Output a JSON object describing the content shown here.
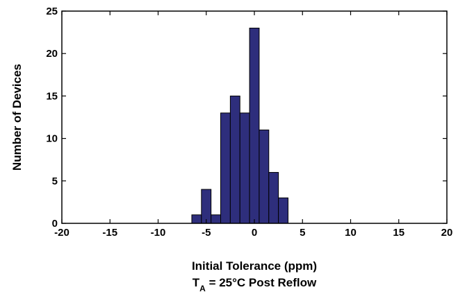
{
  "chart_data": {
    "type": "bar",
    "subtype": "histogram",
    "bin_width": 1,
    "bin_centers": [
      -6,
      -5,
      -4,
      -3,
      -2,
      -1,
      0,
      1,
      2,
      3
    ],
    "values": [
      1,
      4,
      1,
      13,
      15,
      13,
      23,
      11,
      6,
      3
    ],
    "xlim": [
      -20,
      20
    ],
    "ylim": [
      0,
      25
    ],
    "xticks": [
      "-20",
      "-15",
      "-10",
      "-5",
      "0",
      "5",
      "10",
      "15",
      "20"
    ],
    "yticks": [
      "0",
      "5",
      "10",
      "15",
      "20",
      "25"
    ],
    "xlabel": "Initial Tolerance (ppm)",
    "xlabel2": {
      "prefix": "T",
      "subscript": "A",
      "suffix": " = 25°C Post Reflow"
    },
    "ylabel": "Number of Devices",
    "bar_color": "#2e2e7c",
    "grid": false
  }
}
